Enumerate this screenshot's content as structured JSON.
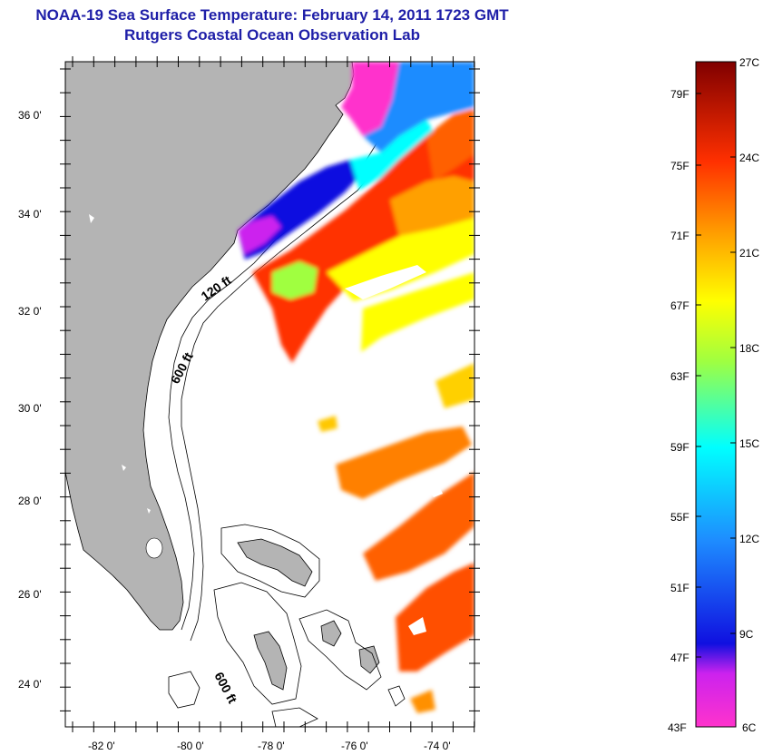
{
  "title": {
    "line1": "NOAA-19 Sea Surface Temperature:  February 14, 2011 1723 GMT",
    "line2": "Rutgers Coastal Ocean Observation Lab"
  },
  "map": {
    "lat_labels": [
      "36 0'",
      "34 0'",
      "32 0'",
      "30 0'",
      "28 0'",
      "26 0'",
      "24 0'"
    ],
    "lon_labels": [
      "-82 0'",
      "-80 0'",
      "-78 0'",
      "-76 0'",
      "-74 0'"
    ],
    "depth_labels": [
      "120 ft",
      "600 ft",
      "600 ft"
    ]
  },
  "colorbar": {
    "fahrenheit": [
      "79F",
      "75F",
      "71F",
      "67F",
      "63F",
      "59F",
      "55F",
      "51F",
      "47F",
      "43F"
    ],
    "celsius": [
      "27C",
      "24C",
      "21C",
      "18C",
      "15C",
      "12C",
      "9C",
      "6C"
    ]
  },
  "colors": {
    "title": "#1f1fa8",
    "land": "#b4b4b4",
    "ocean": "#ffffff"
  }
}
